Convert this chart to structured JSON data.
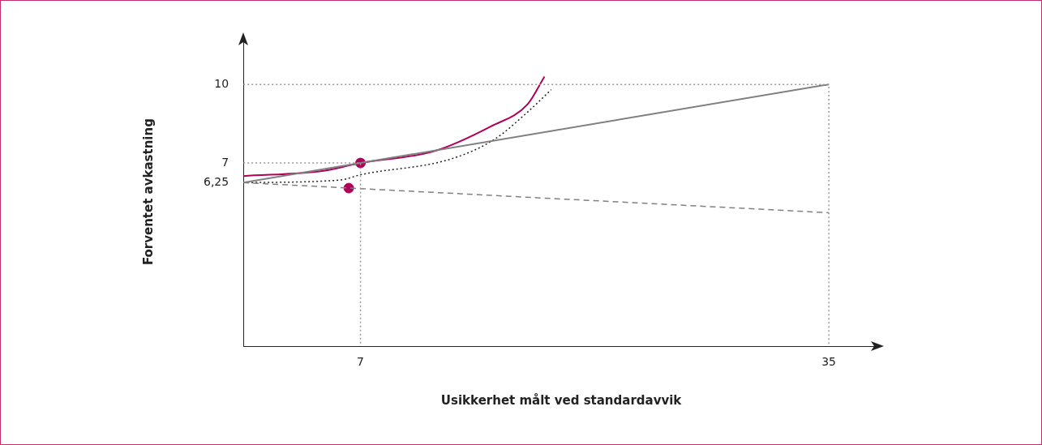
{
  "chart_data": {
    "type": "line",
    "xlabel": "Usikkerhet målt ved standardavvik",
    "ylabel": "Forventet avkastning",
    "xlim": [
      0,
      38
    ],
    "ylim": [
      0,
      11.8
    ],
    "xticks": [
      7,
      35
    ],
    "yticks": [
      {
        "value": 6.25,
        "label": "6,25"
      },
      7,
      10
    ],
    "grid": false,
    "legend": false,
    "series": [
      {
        "type": "line",
        "color": "#999999",
        "line_style": "dotted",
        "marker": "none",
        "x": [
          0,
          35,
          35
        ],
        "values": [
          10,
          10,
          0
        ]
      },
      {
        "type": "line",
        "color": "#999999",
        "line_style": "dotted",
        "marker": "none",
        "x": [
          0,
          7,
          7
        ],
        "values": [
          7,
          7,
          0
        ]
      },
      {
        "type": "line",
        "color": "#808080",
        "line_style": "solid",
        "marker": "none",
        "x": [
          0,
          35
        ],
        "values": [
          6.25,
          10
        ]
      },
      {
        "type": "line",
        "color": "#808080",
        "line_style": "dashed",
        "marker": "none",
        "x": [
          0,
          35
        ],
        "values": [
          6.25,
          5.1
        ]
      },
      {
        "type": "line",
        "color": "#b0005a",
        "line_style": "solid",
        "marker": "none",
        "x": [
          0,
          4.8,
          7,
          11.4,
          14.8,
          17,
          18
        ],
        "values": [
          6.5,
          6.7,
          7,
          7.45,
          8.4,
          9.25,
          10.3
        ]
      },
      {
        "type": "line",
        "color": "#222222",
        "line_style": "dotted",
        "marker": "none",
        "x": [
          0,
          5.8,
          7,
          12.4,
          15,
          17,
          18.4
        ],
        "values": [
          6.25,
          6.35,
          6.55,
          7.15,
          7.9,
          8.95,
          9.8
        ]
      },
      {
        "type": "scatter",
        "color": "#b0005a",
        "marker": "circle",
        "x": [
          7,
          6.3
        ],
        "values": [
          7,
          6.04
        ]
      }
    ]
  }
}
